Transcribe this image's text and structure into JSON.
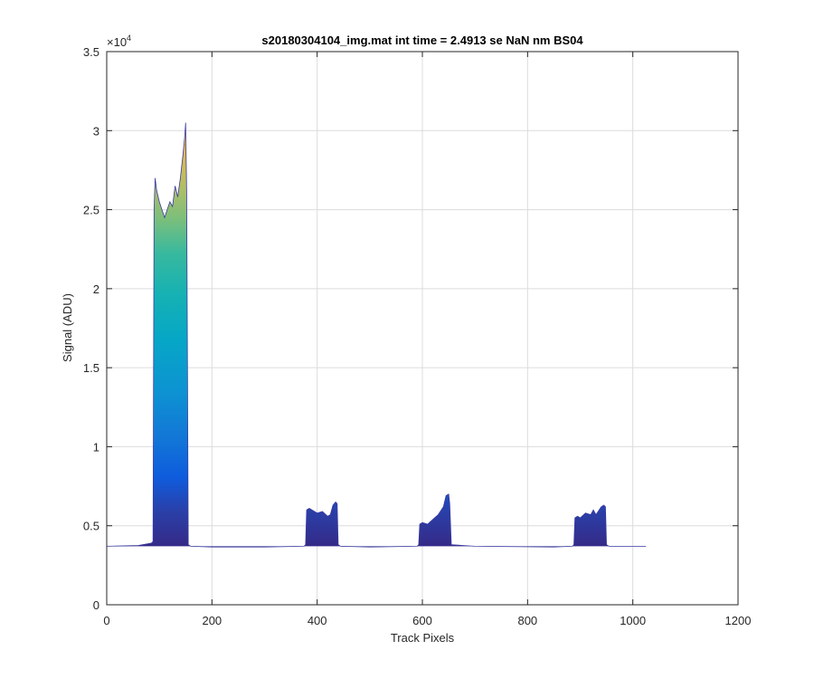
{
  "chart_data": {
    "type": "area",
    "title": "s20180304104_img.mat int time = 2.4913 se  NaN nm BS04",
    "xlabel": "Track Pixels",
    "ylabel": "Signal (ADU)",
    "xlim": [
      0,
      1200
    ],
    "ylim": [
      0,
      35000
    ],
    "xticks": [
      0,
      200,
      400,
      600,
      800,
      1000,
      1200
    ],
    "xtick_labels": [
      "0",
      "200",
      "400",
      "600",
      "800",
      "1000",
      "1200"
    ],
    "yticks": [
      0,
      5000,
      10000,
      15000,
      20000,
      25000,
      30000,
      35000
    ],
    "ytick_labels": [
      "0",
      "0.5",
      "1",
      "1.5",
      "2",
      "2.5",
      "3",
      "3.5"
    ],
    "y_exponent": {
      "base": "×10",
      "power": "4"
    },
    "grid": true,
    "baseline": 3700,
    "colormap": "parula",
    "series_outline": {
      "x": [
        0,
        60,
        85,
        88,
        90,
        92,
        95,
        100,
        105,
        110,
        115,
        120,
        125,
        130,
        135,
        140,
        145,
        148,
        150,
        152,
        155,
        160,
        200,
        300,
        375,
        378,
        380,
        385,
        390,
        400,
        410,
        420,
        425,
        430,
        435,
        438,
        440,
        445,
        500,
        590,
        593,
        595,
        600,
        610,
        620,
        630,
        640,
        645,
        650,
        652,
        655,
        700,
        850,
        885,
        888,
        890,
        895,
        900,
        910,
        920,
        925,
        930,
        940,
        945,
        948,
        950,
        955,
        1000,
        1025
      ],
      "y": [
        3700,
        3750,
        3900,
        4000,
        25000,
        27000,
        26200,
        25500,
        25000,
        24500,
        25000,
        25500,
        25200,
        26500,
        25800,
        27000,
        28500,
        29500,
        30500,
        26000,
        3800,
        3700,
        3650,
        3650,
        3700,
        3800,
        6000,
        6100,
        6000,
        5800,
        5900,
        5600,
        5700,
        6300,
        6500,
        6400,
        3800,
        3700,
        3650,
        3700,
        3800,
        5100,
        5200,
        5100,
        5400,
        5700,
        6200,
        6900,
        7000,
        6400,
        3800,
        3700,
        3650,
        3700,
        3800,
        5500,
        5600,
        5500,
        5800,
        5700,
        6000,
        5700,
        6200,
        6300,
        6200,
        3800,
        3700,
        3700,
        3700
      ]
    }
  }
}
